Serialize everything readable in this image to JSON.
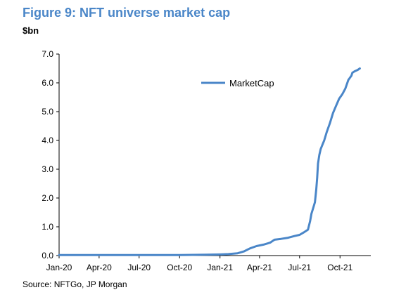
{
  "title": "Figure 9: NFT universe market cap",
  "unit_label": "$bn",
  "source": "Source: NFTGo, JP Morgan",
  "colors": {
    "title": "#4a86c8",
    "series": "#4a86c8",
    "axis": "#000000"
  },
  "chart_data": {
    "type": "line",
    "title": "Figure 9: NFT universe market cap",
    "xlabel": "",
    "ylabel": "$bn",
    "ylim": [
      0,
      7
    ],
    "xlim": [
      "2020-01-01",
      "2021-12-10"
    ],
    "y_ticks": [
      "0.0",
      "1.0",
      "2.0",
      "3.0",
      "4.0",
      "5.0",
      "6.0",
      "7.0"
    ],
    "x_ticks": [
      {
        "date": "2020-01-01",
        "label": "Jan-20"
      },
      {
        "date": "2020-04-01",
        "label": "Apr-20"
      },
      {
        "date": "2020-07-01",
        "label": "Jul-20"
      },
      {
        "date": "2020-10-01",
        "label": "Oct-20"
      },
      {
        "date": "2021-01-01",
        "label": "Jan-21"
      },
      {
        "date": "2021-04-01",
        "label": "Apr-21"
      },
      {
        "date": "2021-07-01",
        "label": "Jul-21"
      },
      {
        "date": "2021-10-01",
        "label": "Oct-21"
      }
    ],
    "grid": false,
    "legend": "top-center",
    "series": [
      {
        "name": "MarketCap",
        "color": "#4a86c8",
        "x": [
          "2020-01-01",
          "2020-04-01",
          "2020-07-01",
          "2020-10-01",
          "2020-12-01",
          "2021-01-01",
          "2021-01-20",
          "2021-02-10",
          "2021-02-25",
          "2021-03-10",
          "2021-03-25",
          "2021-04-10",
          "2021-04-25",
          "2021-05-05",
          "2021-05-20",
          "2021-06-05",
          "2021-06-20",
          "2021-07-01",
          "2021-07-10",
          "2021-07-20",
          "2021-07-25",
          "2021-07-28",
          "2021-08-01",
          "2021-08-05",
          "2021-08-08",
          "2021-08-10",
          "2021-08-12",
          "2021-08-15",
          "2021-08-18",
          "2021-08-22",
          "2021-08-26",
          "2021-09-01",
          "2021-09-08",
          "2021-09-15",
          "2021-09-22",
          "2021-09-29",
          "2021-10-06",
          "2021-10-13",
          "2021-10-20",
          "2021-10-27",
          "2021-10-29",
          "2021-11-03",
          "2021-11-10",
          "2021-11-15"
        ],
        "values": [
          0.02,
          0.02,
          0.02,
          0.02,
          0.03,
          0.04,
          0.05,
          0.08,
          0.15,
          0.25,
          0.33,
          0.38,
          0.45,
          0.55,
          0.58,
          0.62,
          0.68,
          0.72,
          0.8,
          0.9,
          1.2,
          1.45,
          1.65,
          1.85,
          2.3,
          2.7,
          3.2,
          3.5,
          3.7,
          3.85,
          4.0,
          4.3,
          4.6,
          4.95,
          5.2,
          5.45,
          5.6,
          5.8,
          6.1,
          6.25,
          6.35,
          6.4,
          6.45,
          6.5
        ]
      }
    ]
  }
}
